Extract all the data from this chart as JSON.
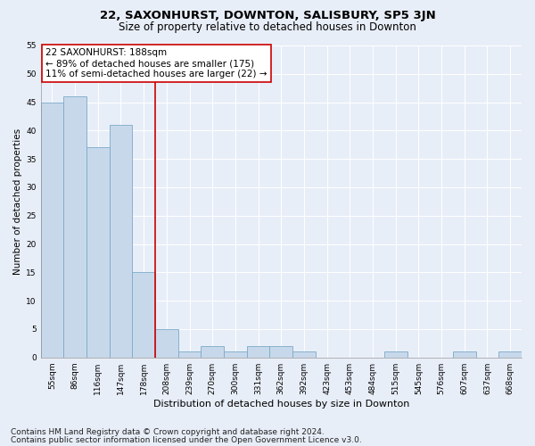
{
  "title": "22, SAXONHURST, DOWNTON, SALISBURY, SP5 3JN",
  "subtitle": "Size of property relative to detached houses in Downton",
  "xlabel": "Distribution of detached houses by size in Downton",
  "ylabel": "Number of detached properties",
  "categories": [
    "55sqm",
    "86sqm",
    "116sqm",
    "147sqm",
    "178sqm",
    "208sqm",
    "239sqm",
    "270sqm",
    "300sqm",
    "331sqm",
    "362sqm",
    "392sqm",
    "423sqm",
    "453sqm",
    "484sqm",
    "515sqm",
    "545sqm",
    "576sqm",
    "607sqm",
    "637sqm",
    "668sqm"
  ],
  "values": [
    45,
    46,
    37,
    41,
    15,
    5,
    1,
    2,
    1,
    2,
    2,
    1,
    0,
    0,
    0,
    1,
    0,
    0,
    1,
    0,
    1
  ],
  "bar_color": "#c8d8eb",
  "bar_edge_color": "#7aaac8",
  "vline_x": 4.5,
  "vline_color": "#cc0000",
  "annotation_line1": "22 SAXONHURST: 188sqm",
  "annotation_line2": "← 89% of detached houses are smaller (175)",
  "annotation_line3": "11% of semi-detached houses are larger (22) →",
  "annotation_box_facecolor": "#ffffff",
  "annotation_box_edgecolor": "#cc0000",
  "ylim": [
    0,
    55
  ],
  "yticks": [
    0,
    5,
    10,
    15,
    20,
    25,
    30,
    35,
    40,
    45,
    50,
    55
  ],
  "grid_color": "#ffffff",
  "background_color": "#e8eef8",
  "footer1": "Contains HM Land Registry data © Crown copyright and database right 2024.",
  "footer2": "Contains public sector information licensed under the Open Government Licence v3.0.",
  "title_fontsize": 9.5,
  "subtitle_fontsize": 8.5,
  "xlabel_fontsize": 8,
  "ylabel_fontsize": 7.5,
  "tick_fontsize": 6.5,
  "annotation_fontsize": 7.5,
  "footer_fontsize": 6.5
}
